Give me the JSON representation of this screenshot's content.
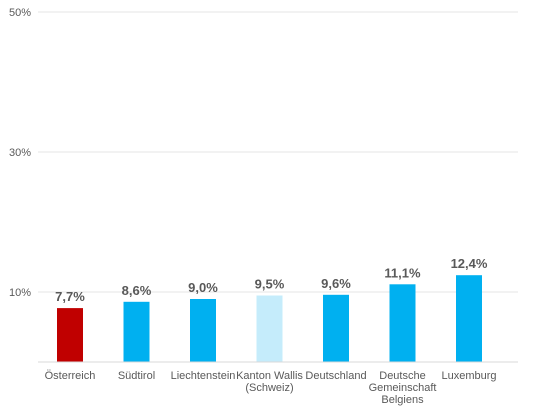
{
  "chart_data": {
    "type": "bar",
    "categories": [
      [
        "Österreich"
      ],
      [
        "Südtirol"
      ],
      [
        "Liechtenstein"
      ],
      [
        "Kanton Wallis",
        "(Schweiz)"
      ],
      [
        "Deutschland"
      ],
      [
        "Deutsche",
        "Gemeinschaft",
        "Belgiens"
      ],
      [
        "Luxemburg"
      ]
    ],
    "values": [
      7.7,
      8.6,
      9.0,
      9.5,
      9.6,
      11.1,
      12.4
    ],
    "data_labels": [
      "7,7%",
      "8,6%",
      "9,0%",
      "9,5%",
      "9,6%",
      "11,1%",
      "12,4%"
    ],
    "bar_colors": [
      "#c00000",
      "#00b0f0",
      "#00b0f0",
      "#c5ecfb",
      "#00b0f0",
      "#00b0f0",
      "#00b0f0"
    ],
    "ytick_values": [
      10,
      30,
      50
    ],
    "ytick_labels": [
      "10%",
      "30%",
      "50%"
    ],
    "ylim": [
      0,
      50
    ],
    "y_axis_note": "axis starts near 0 but lower region compressed as in original",
    "grid": true,
    "title": "",
    "xlabel": "",
    "ylabel": ""
  }
}
